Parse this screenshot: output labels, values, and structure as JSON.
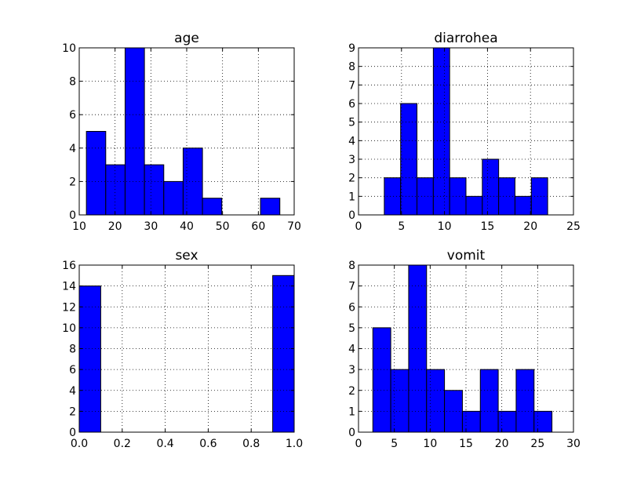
{
  "chart_data": [
    {
      "type": "bar",
      "title": "age",
      "bin_edges": [
        12.0,
        17.4,
        22.8,
        28.2,
        33.6,
        39.0,
        44.4,
        49.8,
        55.2,
        60.6,
        66.0
      ],
      "counts": [
        5,
        3,
        10,
        3,
        2,
        4,
        1,
        0,
        0,
        1
      ],
      "xlim": [
        10,
        70
      ],
      "ylim": [
        0,
        10
      ],
      "xticks": [
        "10",
        "20",
        "30",
        "40",
        "50",
        "60",
        "70"
      ],
      "yticks": [
        "0",
        "2",
        "4",
        "6",
        "8",
        "10"
      ],
      "xtick_values": [
        10,
        20,
        30,
        40,
        50,
        60,
        70
      ],
      "ytick_values": [
        0,
        2,
        4,
        6,
        8,
        10
      ],
      "grid": true,
      "bar_color": "#0000ff"
    },
    {
      "type": "bar",
      "title": "diarrohea",
      "bin_edges": [
        3.0,
        4.9,
        6.8,
        8.7,
        10.6,
        12.5,
        14.4,
        16.3,
        18.2,
        20.1,
        22.0
      ],
      "counts": [
        2,
        6,
        2,
        9,
        2,
        1,
        3,
        2,
        1,
        2
      ],
      "xlim": [
        0,
        25
      ],
      "ylim": [
        0,
        9
      ],
      "xticks": [
        "0",
        "5",
        "10",
        "15",
        "20",
        "25"
      ],
      "yticks": [
        "0",
        "1",
        "2",
        "3",
        "4",
        "5",
        "6",
        "7",
        "8",
        "9"
      ],
      "xtick_values": [
        0,
        5,
        10,
        15,
        20,
        25
      ],
      "ytick_values": [
        0,
        1,
        2,
        3,
        4,
        5,
        6,
        7,
        8,
        9
      ],
      "grid": true,
      "bar_color": "#0000ff"
    },
    {
      "type": "bar",
      "title": "sex",
      "bin_edges": [
        0.0,
        0.1,
        0.2,
        0.3,
        0.4,
        0.5,
        0.6,
        0.7,
        0.8,
        0.9,
        1.0
      ],
      "counts": [
        14,
        0,
        0,
        0,
        0,
        0,
        0,
        0,
        0,
        15
      ],
      "xlim": [
        0,
        1
      ],
      "ylim": [
        0,
        16
      ],
      "xticks": [
        "0.0",
        "0.2",
        "0.4",
        "0.6",
        "0.8",
        "1.0"
      ],
      "yticks": [
        "0",
        "2",
        "4",
        "6",
        "8",
        "10",
        "12",
        "14",
        "16"
      ],
      "xtick_values": [
        0,
        0.2,
        0.4,
        0.6,
        0.8,
        1.0
      ],
      "ytick_values": [
        0,
        2,
        4,
        6,
        8,
        10,
        12,
        14,
        16
      ],
      "grid": true,
      "bar_color": "#0000ff"
    },
    {
      "type": "bar",
      "title": "vomit",
      "bin_edges": [
        2.0,
        4.5,
        7.0,
        9.5,
        12.0,
        14.5,
        17.0,
        19.5,
        22.0,
        24.5,
        27.0
      ],
      "counts": [
        5,
        3,
        8,
        3,
        2,
        1,
        3,
        1,
        3,
        1
      ],
      "xlim": [
        0,
        30
      ],
      "ylim": [
        0,
        8
      ],
      "xticks": [
        "0",
        "5",
        "10",
        "15",
        "20",
        "25",
        "30"
      ],
      "yticks": [
        "0",
        "1",
        "2",
        "3",
        "4",
        "5",
        "6",
        "7",
        "8"
      ],
      "xtick_values": [
        0,
        5,
        10,
        15,
        20,
        25,
        30
      ],
      "ytick_values": [
        0,
        1,
        2,
        3,
        4,
        5,
        6,
        7,
        8
      ],
      "grid": true,
      "bar_color": "#0000ff"
    }
  ]
}
